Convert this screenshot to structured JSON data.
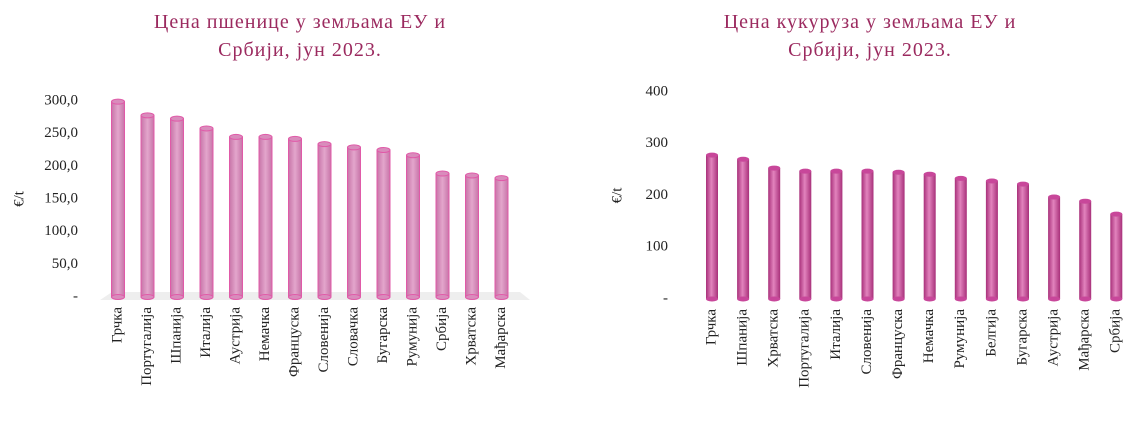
{
  "chart_data": [
    {
      "type": "bar",
      "title": "Цена пшенице у земљама ЕУ и Србији, јун 2023.",
      "y_label": "€/t",
      "categories": [
        "Грчка",
        "Португалија",
        "Шпанија",
        "Италија",
        "Аустрија",
        "Немачка",
        "Француска",
        "Словенија",
        "Словачка",
        "Бугарска",
        "Румунија",
        "Србија",
        "Хрватска",
        "Мађарска"
      ],
      "values": [
        299,
        278,
        273,
        258,
        245,
        245,
        242,
        234,
        229,
        225,
        217,
        189,
        186,
        182
      ],
      "color": "#d98cbc",
      "ylim": [
        0,
        300
      ],
      "yticks": [
        {
          "value": 0,
          "label": "-"
        },
        {
          "value": 50,
          "label": "50,0"
        },
        {
          "value": 100,
          "label": "100,0"
        },
        {
          "value": 150,
          "label": "150,0"
        },
        {
          "value": 200,
          "label": "200,0"
        },
        {
          "value": 250,
          "label": "250,0"
        },
        {
          "value": 300,
          "label": "300,0"
        }
      ]
    },
    {
      "type": "bar",
      "title": "Цена кукуруза у земљама ЕУ и Србији, јун 2023.",
      "y_label": "€/t",
      "categories": [
        "Грчка",
        "Шпанија",
        "Хрватска",
        "Португалија",
        "Италија",
        "Словенија",
        "Француска",
        "Немачка",
        "Румунија",
        "Белгија",
        "Бугарска",
        "Аустрија",
        "Мађарска",
        "Србија"
      ],
      "values": [
        278,
        270,
        253,
        247,
        247,
        247,
        245,
        241,
        233,
        228,
        222,
        197,
        189,
        164
      ],
      "color": "#c8479a",
      "ylim": [
        0,
        400
      ],
      "yticks": [
        {
          "value": 0,
          "label": "-"
        },
        100,
        200,
        300,
        400
      ]
    }
  ]
}
